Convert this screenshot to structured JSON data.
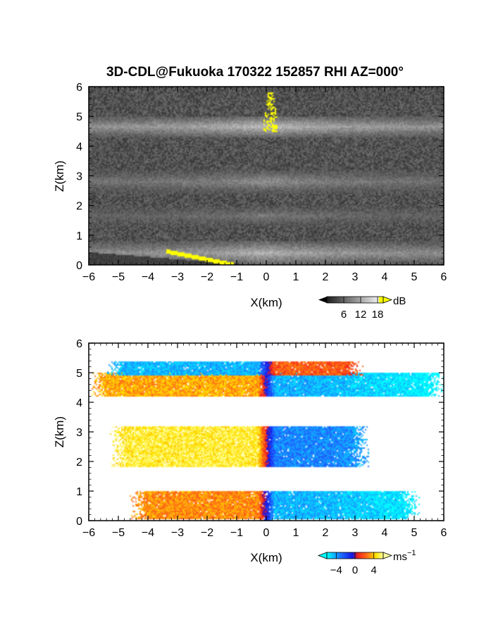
{
  "title": "3D-CDL@Fukuoka 170322 152857 RHI AZ=000°",
  "panels": [
    {
      "id": "intensity",
      "xlabel": "X(km)",
      "ylabel": "Z(km)",
      "xlim": [
        -6,
        6
      ],
      "ylim": [
        0,
        6
      ],
      "xticks": [
        "−6",
        "−5",
        "−4",
        "−3",
        "−2",
        "−1",
        "0",
        "1",
        "2",
        "3",
        "4",
        "5",
        "6"
      ],
      "yticks": [
        "0",
        "1",
        "2",
        "3",
        "4",
        "5",
        "6"
      ],
      "colorbar": {
        "unit": "dB",
        "ticks": [
          "6",
          "12",
          "18"
        ],
        "range": [
          0,
          20
        ]
      }
    },
    {
      "id": "velocity",
      "xlabel": "X(km)",
      "ylabel": "Z(km)",
      "xlim": [
        -6,
        6
      ],
      "ylim": [
        0,
        6
      ],
      "xticks": [
        "−6",
        "−5",
        "−4",
        "−3",
        "−2",
        "−1",
        "0",
        "1",
        "2",
        "3",
        "4",
        "5",
        "6"
      ],
      "yticks": [
        "0",
        "1",
        "2",
        "3",
        "4",
        "5",
        "6"
      ],
      "colorbar": {
        "unit": "ms",
        "unit_exp": "−1",
        "ticks": [
          "−4",
          "0",
          "4"
        ],
        "range": [
          -6,
          6
        ]
      }
    }
  ],
  "chart_data": [
    {
      "type": "heatmap",
      "quantity": "intensity (dB)",
      "xlim": [
        -6,
        6
      ],
      "ylim": [
        0,
        6
      ],
      "layers": [
        {
          "z": [
            4.3,
            5.0
          ],
          "x": [
            -6,
            6
          ],
          "value_db": 14
        },
        {
          "z": [
            2.4,
            3.2
          ],
          "x": [
            -6,
            6
          ],
          "value_db": 10
        },
        {
          "z": [
            1.3,
            2.0
          ],
          "x": [
            -6,
            6
          ],
          "value_db": 8
        },
        {
          "z": [
            0.0,
            0.8
          ],
          "x": [
            -6,
            6
          ],
          "value_db": 13
        }
      ],
      "saturated_regions": [
        {
          "x": [
            -0.1,
            0.4
          ],
          "z": [
            4.5,
            5.8
          ],
          "value_db": 19
        },
        {
          "x": [
            -3.4,
            -1.1
          ],
          "z": [
            0.0,
            0.5
          ],
          "value_db": 19
        }
      ]
    },
    {
      "type": "heatmap",
      "quantity": "Doppler velocity (m s−1)",
      "xlim": [
        -6,
        6
      ],
      "ylim": [
        0,
        6
      ],
      "layers": [
        {
          "z": [
            4.2,
            5.0
          ],
          "x": [
            -6,
            6
          ],
          "x_neg_value": 3.5,
          "x_pos_value": -4.5
        },
        {
          "z": [
            4.9,
            5.4
          ],
          "x": [
            -5.4,
            3.3
          ],
          "x_neg_value": -4.5,
          "x_pos_value": 2.0
        },
        {
          "z": [
            1.8,
            3.2
          ],
          "x": [
            -5.3,
            3.5
          ],
          "x_neg_value": 5.0,
          "x_pos_value": -3.5
        },
        {
          "z": [
            0.0,
            1.0
          ],
          "x": [
            -4.6,
            5.2
          ],
          "x_neg_value": 3.0,
          "x_pos_value": -4.5
        }
      ]
    }
  ],
  "colors": {
    "axis": "#000000",
    "bad_yellow": "#ffff00"
  }
}
